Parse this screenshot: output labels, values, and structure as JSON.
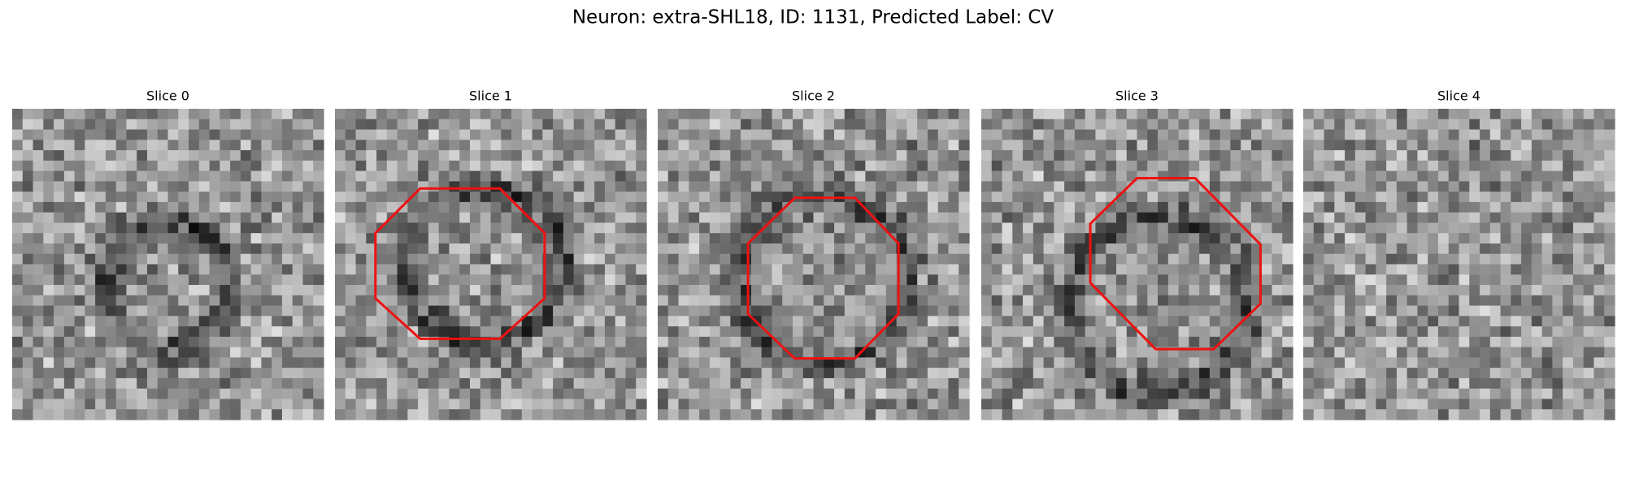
{
  "title": "Neuron: extra-SHL18, ID: 1131, Predicted Label: CV",
  "panels": [
    {
      "title": "Slice 0"
    },
    {
      "title": "Slice 1"
    },
    {
      "title": "Slice 2"
    },
    {
      "title": "Slice 3"
    },
    {
      "title": "Slice 4"
    }
  ]
}
